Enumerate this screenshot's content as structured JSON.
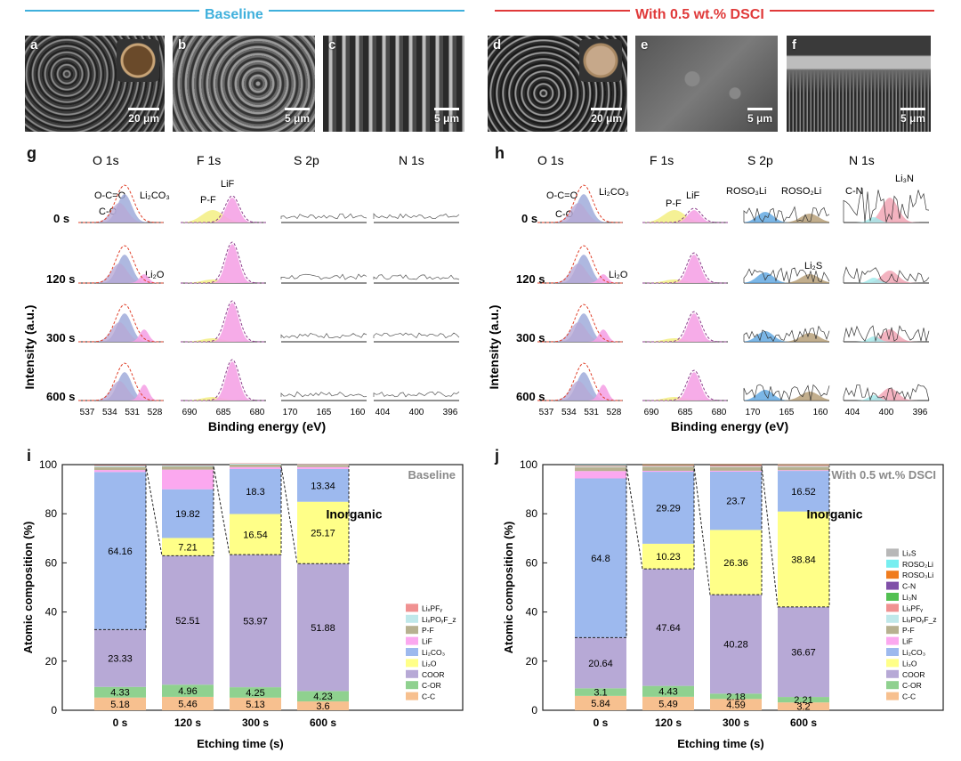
{
  "headers": {
    "baseline": "Baseline",
    "dsci": "With 0.5 wt.% DSCI"
  },
  "colors": {
    "baseline": "#3fb0dc",
    "dsci": "#e03a3a"
  },
  "sem_panels": [
    {
      "label": "a",
      "scale": "20 μm",
      "inset": "dark-electrode"
    },
    {
      "label": "b",
      "scale": "5 μm"
    },
    {
      "label": "c",
      "scale": "5 μm"
    },
    {
      "label": "d",
      "scale": "20 μm",
      "inset": "light-electrode"
    },
    {
      "label": "e",
      "scale": "5 μm"
    },
    {
      "label": "f",
      "scale": "5 μm"
    }
  ],
  "xps": {
    "g": {
      "label": "g",
      "columns": [
        "O 1s",
        "F 1s",
        "S 2p",
        "N 1s"
      ],
      "times": [
        "0 s",
        "120 s",
        "300 s",
        "600 s"
      ],
      "ylabel": "Intensity (a.u.)",
      "xlabel": "Binding energy (eV)",
      "ticks": [
        [
          "537",
          "534",
          "531",
          "528"
        ],
        [
          "690",
          "685",
          "680"
        ],
        [
          "170",
          "165",
          "160"
        ],
        [
          "404",
          "400",
          "396"
        ]
      ],
      "peak_labels": {
        "oco": "O-C=O",
        "co": "C-O",
        "li2co3": "Li₂CO₃",
        "pf": "P-F",
        "lif": "LiF",
        "li2o": "Li₂O"
      }
    },
    "h": {
      "label": "h",
      "columns": [
        "O 1s",
        "F 1s",
        "S 2p",
        "N 1s"
      ],
      "times": [
        "0 s",
        "120 s",
        "300 s",
        "600 s"
      ],
      "ylabel": "Intensity (a.u.)",
      "xlabel": "Binding energy (eV)",
      "ticks": [
        [
          "537",
          "534",
          "531",
          "528"
        ],
        [
          "690",
          "685",
          "680"
        ],
        [
          "170",
          "165",
          "160"
        ],
        [
          "404",
          "400",
          "396"
        ]
      ],
      "peak_labels": {
        "oco": "O-C=O",
        "co": "C-O",
        "li2co3": "Li₂CO₃",
        "pf": "P-F",
        "lif": "LiF",
        "li2o": "Li₂O",
        "roso3li": "ROSO₃Li",
        "roso2li": "ROSO₂Li",
        "li2s": "Li₂S",
        "cn": "C-N",
        "li3n": "Li₃N"
      }
    }
  },
  "chart_data": [
    {
      "panel": "i",
      "type": "bar",
      "stacked": true,
      "title": "Baseline",
      "xlabel": "Etching time (s)",
      "ylabel": "Atomic composition (%)",
      "ylim": [
        0,
        100
      ],
      "yticks": [
        "0",
        "20",
        "40",
        "60",
        "80",
        "100"
      ],
      "categories": [
        "0 s",
        "120 s",
        "300 s",
        "600 s"
      ],
      "annotation": "Inorganic",
      "series": [
        {
          "name": "C-C",
          "color": "#f7c08f",
          "values": [
            5.18,
            5.46,
            5.13,
            3.6
          ]
        },
        {
          "name": "C-OR",
          "color": "#8fd18f",
          "values": [
            4.33,
            4.96,
            4.25,
            4.23
          ]
        },
        {
          "name": "COOR",
          "color": "#b7a9d6",
          "values": [
            23.33,
            52.51,
            53.97,
            51.88
          ]
        },
        {
          "name": "Li₂O",
          "color": "#ffff88",
          "values": [
            0,
            7.21,
            16.54,
            25.17
          ]
        },
        {
          "name": "Li₂CO₃",
          "color": "#9db9ee",
          "values": [
            64.16,
            19.82,
            18.3,
            13.34
          ]
        },
        {
          "name": "LiF",
          "color": "#fba8ef",
          "values": [
            0.8,
            8.0,
            0.8,
            0.8
          ]
        },
        {
          "name": "P-F",
          "color": "#b7b190",
          "values": [
            1.2,
            1.3,
            1.0,
            0.8
          ]
        },
        {
          "name": "LiₓPOᵧF_z",
          "color": "#bfe8ea",
          "values": [
            0.5,
            0.4,
            0.4,
            0.2
          ]
        },
        {
          "name": "LiₓPFᵧ",
          "color": "#f09191",
          "values": [
            0.3,
            0.2,
            0.2,
            0.1
          ]
        }
      ],
      "labels": [
        [
          "5.18",
          "4.33",
          "23.33",
          "",
          "64.16"
        ],
        [
          "5.46",
          "4.96",
          "52.51",
          "7.21",
          "19.82"
        ],
        [
          "5.13",
          "4.25",
          "53.97",
          "16.54",
          "18.3"
        ],
        [
          "3.6",
          "4.23",
          "51.88",
          "25.17",
          "13.34"
        ]
      ]
    },
    {
      "panel": "j",
      "type": "bar",
      "stacked": true,
      "title": "With 0.5 wt.% DSCI",
      "xlabel": "Etching time (s)",
      "ylabel": "Atomic composition (%)",
      "ylim": [
        0,
        100
      ],
      "yticks": [
        "0",
        "20",
        "40",
        "60",
        "80",
        "100"
      ],
      "categories": [
        "0 s",
        "120 s",
        "300 s",
        "600 s"
      ],
      "annotation": "Inorganic",
      "series": [
        {
          "name": "C-C",
          "color": "#f7c08f",
          "values": [
            5.84,
            5.49,
            4.59,
            3.2
          ]
        },
        {
          "name": "C-OR",
          "color": "#8fd18f",
          "values": [
            3.1,
            4.43,
            2.18,
            2.21
          ]
        },
        {
          "name": "COOR",
          "color": "#b7a9d6",
          "values": [
            20.64,
            47.64,
            40.28,
            36.67
          ]
        },
        {
          "name": "Li₂O",
          "color": "#ffff88",
          "values": [
            0,
            10.23,
            26.36,
            38.84
          ]
        },
        {
          "name": "Li₂CO₃",
          "color": "#9db9ee",
          "values": [
            64.8,
            29.29,
            23.7,
            16.52
          ]
        },
        {
          "name": "LiF",
          "color": "#fba8ef",
          "values": [
            3.0,
            0.4,
            0.4,
            0.3
          ]
        },
        {
          "name": "P-F",
          "color": "#b7b190",
          "values": [
            1.5,
            1.6,
            1.4,
            1.3
          ]
        },
        {
          "name": "LiₓPOᵧF_z",
          "color": "#bfe8ea",
          "values": [
            0.3,
            0.3,
            0.3,
            0.3
          ]
        },
        {
          "name": "LiₓPFᵧ",
          "color": "#f09191",
          "values": [
            0.4,
            0.4,
            0.5,
            0.5
          ]
        },
        {
          "name": "Li₃N",
          "color": "#52c052",
          "values": [
            0.2,
            0.1,
            0.1,
            0.2
          ]
        },
        {
          "name": "C-N",
          "color": "#8050a8",
          "values": [
            0.1,
            0.1,
            0.1,
            0.1
          ]
        },
        {
          "name": "ROSO₃Li",
          "color": "#f07c1e",
          "values": [
            0.1,
            0.1,
            0.2,
            0.1
          ]
        },
        {
          "name": "ROSO₂Li",
          "color": "#77eef0",
          "values": [
            0.05,
            0.0,
            0.0,
            0.0
          ]
        },
        {
          "name": "Li₂S",
          "color": "#b8b8b8",
          "values": [
            0.0,
            0.0,
            0.0,
            0.05
          ]
        }
      ],
      "labels": [
        [
          "5.84",
          "3.1",
          "20.64",
          "",
          "64.8"
        ],
        [
          "5.49",
          "4.43",
          "47.64",
          "10.23",
          "29.29"
        ],
        [
          "4.59",
          "2.18",
          "40.28",
          "26.36",
          "23.7"
        ],
        [
          "3.2",
          "2.21",
          "36.67",
          "38.84",
          "16.52"
        ]
      ]
    }
  ]
}
